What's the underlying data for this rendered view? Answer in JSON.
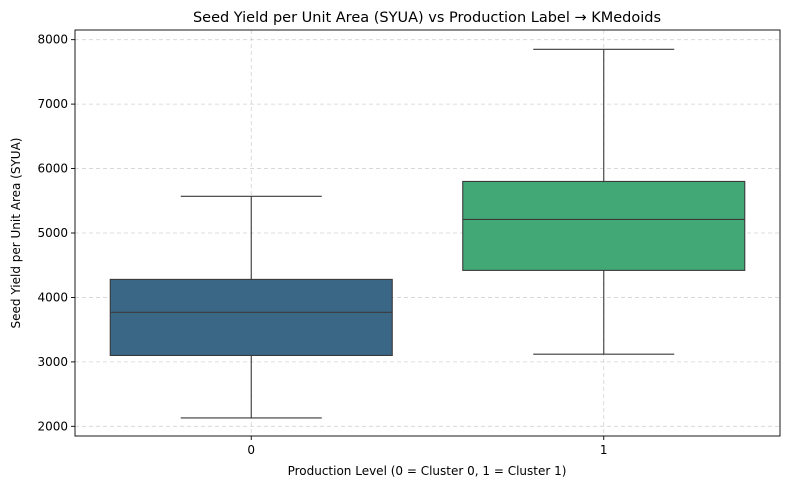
{
  "chart_data": {
    "type": "boxplot",
    "title": "Seed Yield per Unit Area (SYUA) vs Production Label → KMedoids",
    "xlabel": "Production Level (0 = Cluster 0, 1 = Cluster 1)",
    "ylabel": "Seed Yield per Unit Area (SYUA)",
    "ylim": [
      1850,
      8150
    ],
    "yticks": [
      2000,
      3000,
      4000,
      5000,
      6000,
      7000,
      8000
    ],
    "categories": [
      "0",
      "1"
    ],
    "grid": true,
    "boxes": [
      {
        "category": "0",
        "whisker_low": 2130,
        "q1": 3100,
        "median": 3770,
        "q3": 4280,
        "whisker_high": 5570,
        "color": "#3b6787"
      },
      {
        "category": "1",
        "whisker_low": 3120,
        "q1": 4420,
        "median": 5210,
        "q3": 5800,
        "whisker_high": 7850,
        "color": "#42a876"
      }
    ]
  }
}
